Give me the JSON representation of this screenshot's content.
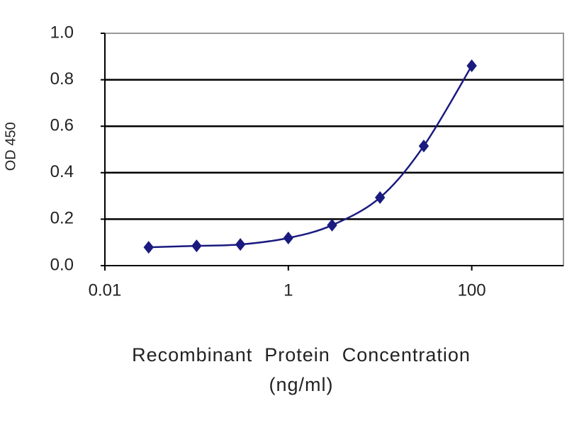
{
  "chart_data": {
    "type": "line",
    "log_x": true,
    "grid": true,
    "x": [
      0.03,
      0.1,
      0.3,
      1,
      3,
      10,
      30,
      100
    ],
    "series": [
      {
        "color": "#1a1a80",
        "values": [
          0.079,
          0.085,
          0.091,
          0.119,
          0.174,
          0.293,
          0.515,
          0.86
        ]
      }
    ],
    "xlim": [
      0.01,
      1000
    ],
    "xticks": [
      0.01,
      1,
      100
    ],
    "ylim": [
      0,
      1
    ],
    "yticks": [
      {
        "value": 0,
        "label": "0.0"
      },
      0.2,
      0.4,
      0.6,
      0.8,
      {
        "value": 1,
        "label": "1.0"
      }
    ],
    "ylabel": "OD 450",
    "xlabel": [
      "Recombinant  Protein  Concentration",
      "(ng/ml)"
    ]
  }
}
